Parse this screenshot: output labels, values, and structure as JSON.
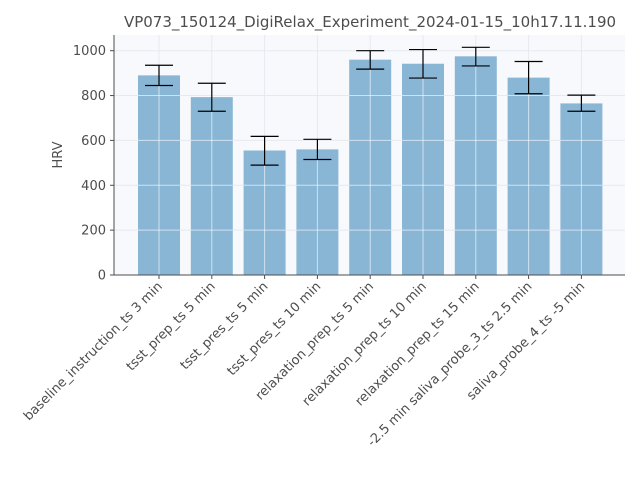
{
  "chart_data": {
    "type": "bar",
    "title": "VP073_150124_DigiRelax_Experiment_2024-01-15_10h17.11.190",
    "xlabel": "",
    "ylabel": "HRV",
    "ylim": [
      0,
      1070
    ],
    "yticks": [
      0,
      200,
      400,
      600,
      800,
      1000
    ],
    "grid": true,
    "legend": "none",
    "bar_color": "#8ab6d6",
    "error_color": "#000000",
    "categories": [
      "baseline_instruction_ts 3 min",
      "tsst_prep_ts 5 min",
      "tsst_pres_ts 5 min",
      "tsst_pres_ts 10 min",
      "relaxation_prep_ts 5 min",
      "relaxation_prep_ts 10 min",
      "relaxation_prep_ts 15 min",
      "-2.5 min saliva_probe_3_ts 2.5 min",
      "saliva_probe_4_ts -5 min"
    ],
    "values": [
      890,
      793,
      555,
      560,
      960,
      942,
      975,
      880,
      765
    ],
    "error_low": [
      845,
      730,
      490,
      515,
      918,
      878,
      932,
      808,
      730
    ],
    "error_high": [
      935,
      855,
      618,
      605,
      1000,
      1005,
      1015,
      952,
      802
    ]
  }
}
